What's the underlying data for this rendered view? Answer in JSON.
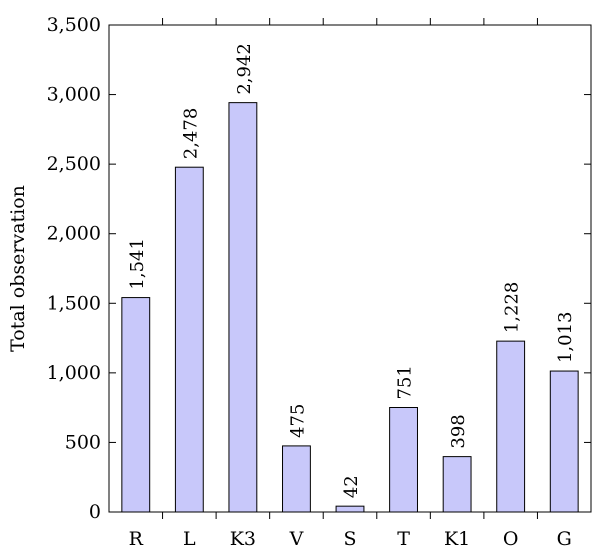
{
  "chart_data": {
    "type": "bar",
    "title": "",
    "xlabel": "",
    "ylabel": "Total observation",
    "categories": [
      "R",
      "L",
      "K3",
      "V",
      "S",
      "T",
      "K1",
      "O",
      "G"
    ],
    "values": [
      1541,
      2478,
      2942,
      475,
      42,
      751,
      398,
      1228,
      1013
    ],
    "value_labels": [
      "1,541",
      "2,478",
      "2,942",
      "475",
      "42",
      "751",
      "398",
      "1,228",
      "1,013"
    ],
    "ylim": [
      0,
      3500
    ],
    "yticks": [
      0,
      500,
      1000,
      1500,
      2000,
      2500,
      3000,
      3500
    ],
    "ytick_labels": [
      "0",
      "500",
      "1,000",
      "1,500",
      "2,000",
      "2,500",
      "3,000",
      "3,500"
    ],
    "grid": false,
    "legend": "none",
    "bar_color": "#c8c8fa",
    "bar_edge_color": "#000000"
  }
}
